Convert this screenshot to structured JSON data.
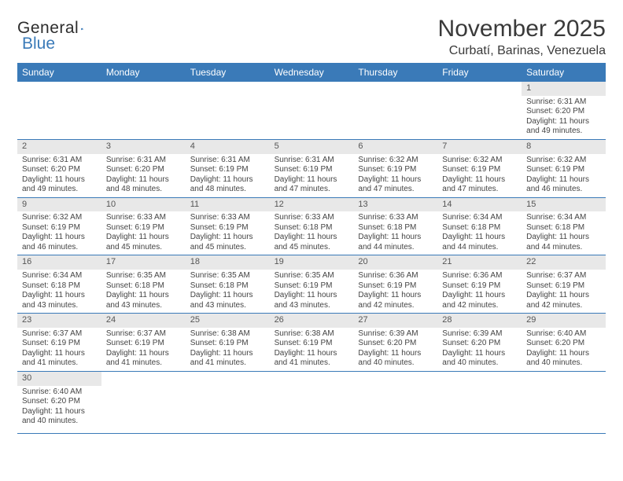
{
  "brand": {
    "text1": "General",
    "text2": "Blue"
  },
  "title": "November 2025",
  "location": "Curbatí, Barinas, Venezuela",
  "colors": {
    "accent": "#3a7ab8",
    "header_bg": "#3a7ab8",
    "header_text": "#ffffff",
    "daynum_bg": "#e8e8e8",
    "text": "#444444"
  },
  "day_headers": [
    "Sunday",
    "Monday",
    "Tuesday",
    "Wednesday",
    "Thursday",
    "Friday",
    "Saturday"
  ],
  "weeks": [
    [
      null,
      null,
      null,
      null,
      null,
      null,
      {
        "n": "1",
        "sr": "6:31 AM",
        "ss": "6:20 PM",
        "dl": "11 hours and 49 minutes."
      }
    ],
    [
      {
        "n": "2",
        "sr": "6:31 AM",
        "ss": "6:20 PM",
        "dl": "11 hours and 49 minutes."
      },
      {
        "n": "3",
        "sr": "6:31 AM",
        "ss": "6:20 PM",
        "dl": "11 hours and 48 minutes."
      },
      {
        "n": "4",
        "sr": "6:31 AM",
        "ss": "6:19 PM",
        "dl": "11 hours and 48 minutes."
      },
      {
        "n": "5",
        "sr": "6:31 AM",
        "ss": "6:19 PM",
        "dl": "11 hours and 47 minutes."
      },
      {
        "n": "6",
        "sr": "6:32 AM",
        "ss": "6:19 PM",
        "dl": "11 hours and 47 minutes."
      },
      {
        "n": "7",
        "sr": "6:32 AM",
        "ss": "6:19 PM",
        "dl": "11 hours and 47 minutes."
      },
      {
        "n": "8",
        "sr": "6:32 AM",
        "ss": "6:19 PM",
        "dl": "11 hours and 46 minutes."
      }
    ],
    [
      {
        "n": "9",
        "sr": "6:32 AM",
        "ss": "6:19 PM",
        "dl": "11 hours and 46 minutes."
      },
      {
        "n": "10",
        "sr": "6:33 AM",
        "ss": "6:19 PM",
        "dl": "11 hours and 45 minutes."
      },
      {
        "n": "11",
        "sr": "6:33 AM",
        "ss": "6:19 PM",
        "dl": "11 hours and 45 minutes."
      },
      {
        "n": "12",
        "sr": "6:33 AM",
        "ss": "6:18 PM",
        "dl": "11 hours and 45 minutes."
      },
      {
        "n": "13",
        "sr": "6:33 AM",
        "ss": "6:18 PM",
        "dl": "11 hours and 44 minutes."
      },
      {
        "n": "14",
        "sr": "6:34 AM",
        "ss": "6:18 PM",
        "dl": "11 hours and 44 minutes."
      },
      {
        "n": "15",
        "sr": "6:34 AM",
        "ss": "6:18 PM",
        "dl": "11 hours and 44 minutes."
      }
    ],
    [
      {
        "n": "16",
        "sr": "6:34 AM",
        "ss": "6:18 PM",
        "dl": "11 hours and 43 minutes."
      },
      {
        "n": "17",
        "sr": "6:35 AM",
        "ss": "6:18 PM",
        "dl": "11 hours and 43 minutes."
      },
      {
        "n": "18",
        "sr": "6:35 AM",
        "ss": "6:18 PM",
        "dl": "11 hours and 43 minutes."
      },
      {
        "n": "19",
        "sr": "6:35 AM",
        "ss": "6:19 PM",
        "dl": "11 hours and 43 minutes."
      },
      {
        "n": "20",
        "sr": "6:36 AM",
        "ss": "6:19 PM",
        "dl": "11 hours and 42 minutes."
      },
      {
        "n": "21",
        "sr": "6:36 AM",
        "ss": "6:19 PM",
        "dl": "11 hours and 42 minutes."
      },
      {
        "n": "22",
        "sr": "6:37 AM",
        "ss": "6:19 PM",
        "dl": "11 hours and 42 minutes."
      }
    ],
    [
      {
        "n": "23",
        "sr": "6:37 AM",
        "ss": "6:19 PM",
        "dl": "11 hours and 41 minutes."
      },
      {
        "n": "24",
        "sr": "6:37 AM",
        "ss": "6:19 PM",
        "dl": "11 hours and 41 minutes."
      },
      {
        "n": "25",
        "sr": "6:38 AM",
        "ss": "6:19 PM",
        "dl": "11 hours and 41 minutes."
      },
      {
        "n": "26",
        "sr": "6:38 AM",
        "ss": "6:19 PM",
        "dl": "11 hours and 41 minutes."
      },
      {
        "n": "27",
        "sr": "6:39 AM",
        "ss": "6:20 PM",
        "dl": "11 hours and 40 minutes."
      },
      {
        "n": "28",
        "sr": "6:39 AM",
        "ss": "6:20 PM",
        "dl": "11 hours and 40 minutes."
      },
      {
        "n": "29",
        "sr": "6:40 AM",
        "ss": "6:20 PM",
        "dl": "11 hours and 40 minutes."
      }
    ],
    [
      {
        "n": "30",
        "sr": "6:40 AM",
        "ss": "6:20 PM",
        "dl": "11 hours and 40 minutes."
      },
      null,
      null,
      null,
      null,
      null,
      null
    ]
  ],
  "labels": {
    "sunrise": "Sunrise:",
    "sunset": "Sunset:",
    "daylight": "Daylight:"
  }
}
